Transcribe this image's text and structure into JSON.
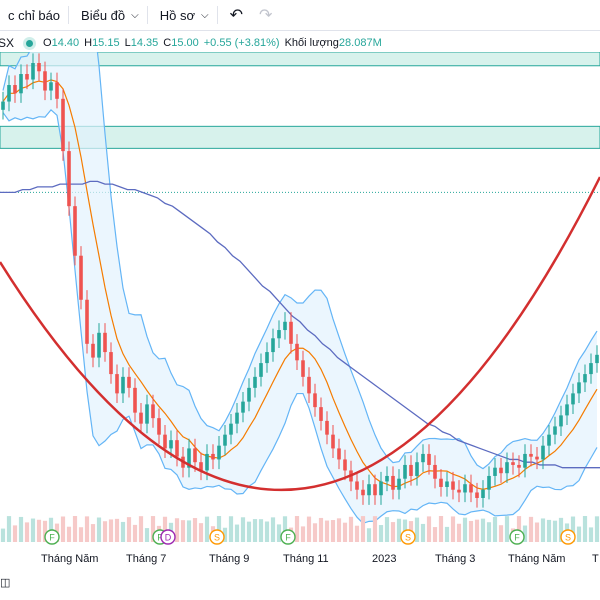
{
  "toolbar": {
    "indicators_label": "c chỉ báo",
    "chart_type_label": "Biểu đồ",
    "profile_label": "Hồ sơ",
    "undo_icon": "undo-icon",
    "redo_icon": "redo-icon"
  },
  "legend": {
    "symbol": "SX",
    "open_key": "O",
    "open_value": "14.40",
    "high_key": "H",
    "high_value": "15.15",
    "low_key": "L",
    "low_value": "14.35",
    "close_key": "C",
    "close_value": "15.00",
    "change": "+0.55 (+3.81%)",
    "volume_label": "Khối lượng",
    "volume_value": "28.087M",
    "up_color": "#26a69a",
    "down_color": "#ef5350"
  },
  "x_axis": {
    "labels": [
      "Tháng Năm",
      "Tháng 7",
      "Tháng 9",
      "Tháng 11",
      "2023",
      "Tháng 3",
      "Tháng Năm",
      "T"
    ]
  },
  "markers": [
    {
      "label": "F",
      "kind": "financial",
      "color": "#4caf50"
    },
    {
      "label": "F",
      "kind": "financial",
      "color": "#4caf50"
    },
    {
      "label": "D",
      "kind": "dividend",
      "color": "#9c27b0"
    },
    {
      "label": "S",
      "kind": "split",
      "color": "#ff9800"
    },
    {
      "label": "F",
      "kind": "financial",
      "color": "#4caf50"
    },
    {
      "label": "S",
      "kind": "split",
      "color": "#ff9800"
    },
    {
      "label": "F",
      "kind": "financial",
      "color": "#4caf50"
    },
    {
      "label": "S",
      "kind": "split",
      "color": "#ff9800"
    }
  ],
  "chart_data": {
    "type": "candlestick",
    "price_range": [
      9,
      26
    ],
    "closes": [
      24.2,
      24.8,
      24.5,
      25.2,
      25.0,
      25.6,
      25.3,
      24.6,
      24.9,
      24.3,
      22.4,
      20.4,
      18.6,
      17.0,
      15.4,
      14.9,
      15.8,
      15.1,
      14.3,
      13.6,
      14.2,
      13.8,
      12.9,
      12.5,
      13.2,
      12.7,
      12.1,
      11.6,
      11.9,
      11.3,
      10.9,
      11.6,
      11.1,
      10.8,
      11.4,
      11.2,
      11.7,
      12.1,
      12.5,
      12.9,
      13.3,
      13.8,
      14.2,
      14.7,
      15.1,
      15.6,
      15.9,
      16.2,
      15.4,
      14.8,
      14.2,
      13.6,
      13.1,
      12.6,
      12.1,
      11.6,
      11.2,
      10.8,
      10.4,
      10.1,
      9.9,
      10.3,
      9.9,
      10.4,
      10.6,
      10.1,
      10.5,
      11.0,
      10.6,
      11.1,
      11.4,
      11.0,
      10.5,
      10.2,
      10.4,
      10.1,
      10.0,
      10.3,
      10.0,
      9.8,
      10.1,
      10.6,
      10.9,
      10.7,
      11.1,
      11.0,
      10.9,
      11.4,
      11.3,
      11.2,
      11.7,
      12.1,
      12.4,
      12.8,
      13.2,
      13.6,
      14.0,
      14.3,
      14.7,
      15.0
    ],
    "ma_long": [
      20.9,
      20.9,
      20.9,
      21.0,
      21.0,
      21.1,
      21.1,
      21.1,
      21.2,
      21.2,
      21.2,
      21.2,
      21.3,
      21.3,
      21.2,
      21.2,
      21.1,
      21.0,
      21.0,
      20.9,
      20.8,
      20.7,
      20.5,
      20.4,
      20.2,
      20.0,
      19.8,
      19.6,
      19.4,
      19.1,
      18.9,
      18.6,
      18.4,
      18.1,
      17.8,
      17.5,
      17.3,
      17.0,
      16.7,
      16.4,
      16.2,
      15.9,
      15.7,
      15.4,
      15.2,
      14.9,
      14.7,
      14.5,
      14.3,
      14.1,
      13.9,
      13.7,
      13.5,
      13.3,
      13.1,
      12.9,
      12.7,
      12.5,
      12.4,
      12.2,
      12.1,
      11.9,
      11.8,
      11.7,
      11.6,
      11.5,
      11.4,
      11.3,
      11.2,
      11.2,
      11.1,
      11.1,
      11.0,
      11.0,
      11.0,
      10.9,
      10.9,
      10.9,
      10.9,
      10.9,
      10.9
    ],
    "resistance_zones": [
      [
        25.5,
        26.0
      ],
      [
        22.5,
        23.3
      ]
    ],
    "dotted_level": 20.9,
    "curve": "cup",
    "volume_unit": "M"
  }
}
